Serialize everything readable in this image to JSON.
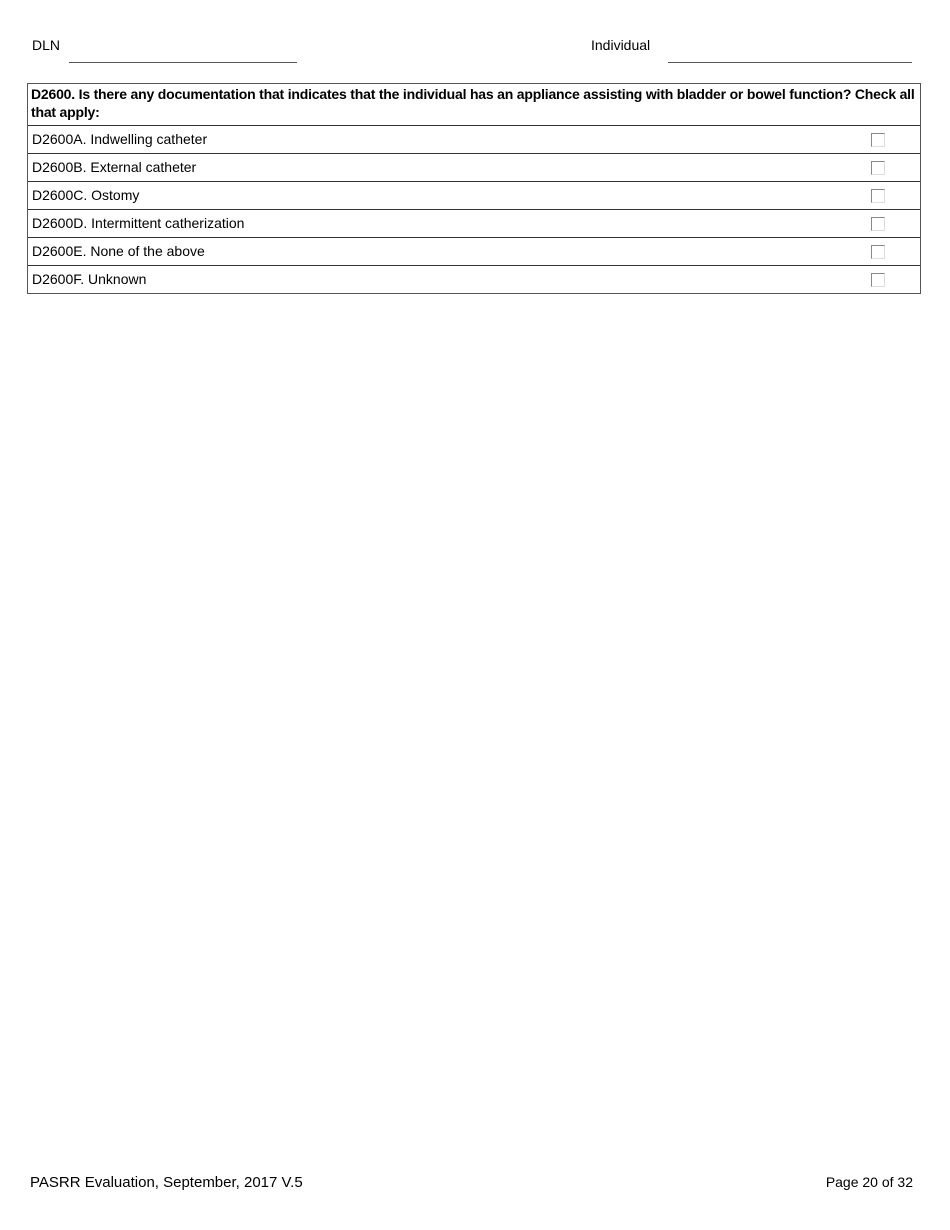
{
  "header": {
    "dln_label": "DLN",
    "individual_label": "Individual"
  },
  "question": {
    "text": "D2600. Is there any documentation that indicates that the individual has an appliance assisting with bladder or bowel function? Check all that apply:",
    "options": [
      {
        "label": "D2600A. Indwelling catheter",
        "checked": false
      },
      {
        "label": "D2600B. External catheter",
        "checked": false
      },
      {
        "label": "D2600C. Ostomy",
        "checked": false
      },
      {
        "label": "D2600D. Intermittent catherization",
        "checked": false
      },
      {
        "label": "D2600E. None of the above",
        "checked": false
      },
      {
        "label": "D2600F. Unknown",
        "checked": false
      }
    ]
  },
  "footer": {
    "left": "PASRR Evaluation, September, 2017 V.5",
    "right": "Page 20 of 32"
  }
}
